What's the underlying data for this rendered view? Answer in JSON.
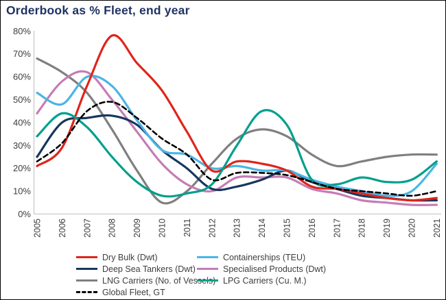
{
  "title": "Orderbook as % Fleet, end year",
  "colors": {
    "title_text": "#1f3263",
    "axis_text": "#3c3c3c",
    "legend_text": "#3d3d3d",
    "axis_line": "#c9c9c9",
    "frame_border": "#000000"
  },
  "chart_data": {
    "type": "line",
    "title": "Orderbook as % Fleet, end year",
    "xlabel": "",
    "ylabel": "",
    "x": [
      2005,
      2006,
      2007,
      2008,
      2009,
      2010,
      2011,
      2012,
      2013,
      2014,
      2015,
      2016,
      2017,
      2018,
      2019,
      2020,
      2021
    ],
    "ylim": [
      0,
      80
    ],
    "y_ticks": [
      0,
      10,
      20,
      30,
      40,
      50,
      60,
      70,
      80
    ],
    "y_tick_suffix": "%",
    "grid": false,
    "line_style": "smooth",
    "legend_position": "bottom",
    "legend_columns": 2,
    "series": [
      {
        "name": "Dry Bulk (Dwt)",
        "color": "#e0241b",
        "dash": "solid",
        "legend_cell": "row1-left",
        "values": [
          21,
          29,
          56,
          78,
          66,
          54,
          36,
          19,
          23,
          22,
          19,
          12,
          11,
          9,
          7,
          6,
          7
        ]
      },
      {
        "name": "Containerships (TEU)",
        "color": "#4ab5e6",
        "dash": "solid",
        "legend_cell": "row1-right",
        "values": [
          53,
          48,
          60,
          56,
          41,
          28,
          26,
          20,
          21,
          19,
          19,
          15,
          12,
          10,
          8,
          10,
          22
        ]
      },
      {
        "name": "Deep Sea Tankers (Dwt)",
        "color": "#17365d",
        "dash": "solid",
        "legend_cell": "row2-left",
        "values": [
          25,
          40,
          42,
          43,
          39,
          28,
          20,
          11,
          12,
          15,
          19,
          14,
          11,
          8,
          7,
          6,
          6
        ]
      },
      {
        "name": "Specialised Products (Dwt)",
        "color": "#c57cb5",
        "dash": "solid",
        "legend_cell": "row2-right",
        "values": [
          44,
          58,
          62,
          50,
          36,
          22,
          13,
          10,
          16,
          16,
          16,
          11,
          9,
          6,
          5,
          4,
          4
        ]
      },
      {
        "name": "LNG Carriers (No. of Vessels)",
        "color": "#7f7f7f",
        "dash": "solid",
        "legend_cell": "row3-left",
        "values": [
          68,
          62,
          53,
          37,
          19,
          5,
          10,
          22,
          33,
          37,
          34,
          26,
          21,
          23,
          25,
          26,
          26
        ]
      },
      {
        "name": "LPG Carriers (Cu. M.)",
        "color": "#009f8c",
        "dash": "solid",
        "legend_cell": "row3-right",
        "values": [
          34,
          44,
          38,
          25,
          14,
          8,
          9,
          13,
          30,
          45,
          39,
          15,
          13,
          16,
          14,
          15,
          23
        ]
      },
      {
        "name": "Global Fleet, GT",
        "color": "#000000",
        "dash": "dashed",
        "legend_cell": "row4-left",
        "values": [
          23,
          31,
          45,
          49,
          42,
          33,
          26,
          15,
          18,
          18,
          17,
          14,
          11,
          10,
          9,
          8,
          10
        ]
      }
    ]
  }
}
